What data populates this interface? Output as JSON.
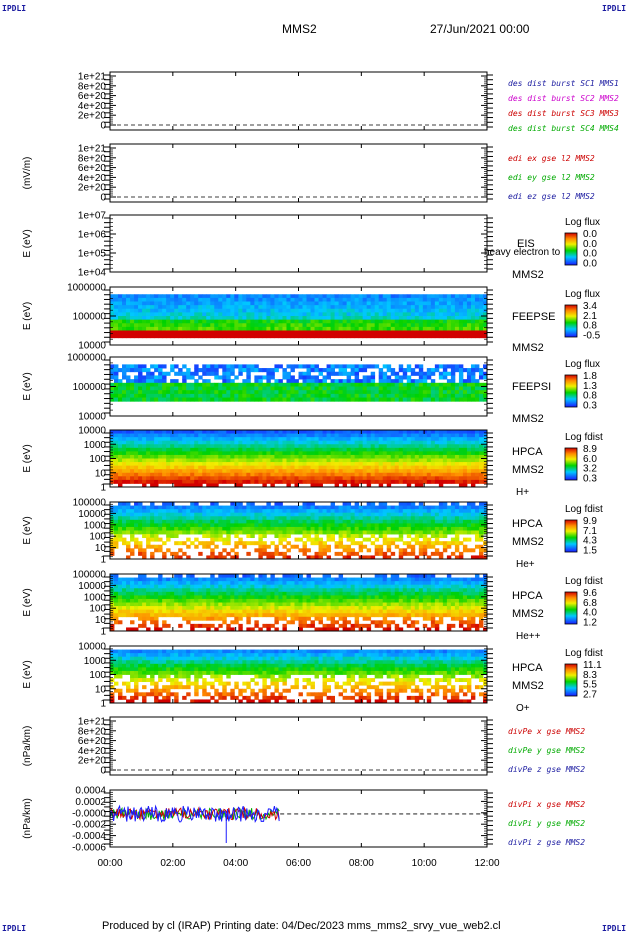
{
  "corner_label": "IPDLI",
  "header": {
    "title": "MMS2",
    "date": "27/Jun/2021 00:00"
  },
  "footer": {
    "text": "Produced by cl (IRAP)   Printing date: 04/Dec/2023   mms_mms2_srvy_vue_web2.cl"
  },
  "chart_data": {
    "type": "heatmap",
    "x_ticks": [
      "00:00",
      "02:00",
      "04:00",
      "06:00",
      "08:00",
      "10:00",
      "12:00"
    ],
    "x_range": [
      "00:00",
      "12:00"
    ],
    "panels": [
      {
        "id": "p1",
        "ylabel": "",
        "kind": "line",
        "y_ticks": [
          "1e+21",
          "8e+20",
          "6e+20",
          "4e+20",
          "2e+20",
          "0"
        ],
        "legend": [
          {
            "text": "des dist burst SC1 MMS1",
            "color": "#1a1aa0"
          },
          {
            "text": "des dist burst SC2 MMS2",
            "color": "#cc00cc"
          },
          {
            "text": "des dist burst SC3 MMS3",
            "color": "#cc0000"
          },
          {
            "text": "des dist burst SC4 MMS4",
            "color": "#00aa00"
          }
        ]
      },
      {
        "id": "p2",
        "ylabel": "(mV/m)",
        "kind": "line",
        "y_ticks": [
          "1e+21",
          "8e+20",
          "6e+20",
          "4e+20",
          "2e+20",
          "0"
        ],
        "legend": [
          {
            "text": "edi ex gse l2 MMS2",
            "color": "#cc0000"
          },
          {
            "text": "edi ey gse l2 MMS2",
            "color": "#00aa00"
          },
          {
            "text": "edi ez gse l2 MMS2",
            "color": "#1a1aa0"
          }
        ]
      },
      {
        "id": "p3",
        "ylabel": "E (eV)",
        "kind": "spectro",
        "y_ticks": [
          "1e+07",
          "1e+06",
          "1e+05",
          "1e+04"
        ],
        "instrument": "EIS",
        "sc": "MMS2",
        "species": "",
        "overlay": "heavy electron to",
        "cbar_title": "Log flux",
        "cbar_ticks": [
          "0.0",
          "0.0",
          "0.0",
          "0.0"
        ]
      },
      {
        "id": "p4",
        "ylabel": "E (eV)",
        "kind": "spectro",
        "y_ticks": [
          "1000000",
          "100000",
          "10000"
        ],
        "instrument": "FEEPSE",
        "sc": "MMS2",
        "species": "",
        "cbar_title": "Log flux",
        "cbar_ticks": [
          "3.4",
          "2.1",
          "0.8",
          "-0.5"
        ]
      },
      {
        "id": "p5",
        "ylabel": "E (eV)",
        "kind": "spectro",
        "y_ticks": [
          "1000000",
          "100000",
          "10000"
        ],
        "instrument": "FEEPSI",
        "sc": "MMS2",
        "species": "",
        "cbar_title": "Log flux",
        "cbar_ticks": [
          "1.8",
          "1.3",
          "0.8",
          "0.3"
        ]
      },
      {
        "id": "p6",
        "ylabel": "E (eV)",
        "kind": "spectro",
        "y_ticks": [
          "10000",
          "1000",
          "100",
          "10",
          "1"
        ],
        "instrument": "HPCA",
        "sc": "MMS2",
        "species": "H+",
        "cbar_title": "Log fdist",
        "cbar_ticks": [
          "8.9",
          "6.0",
          "3.2",
          "0.3"
        ]
      },
      {
        "id": "p7",
        "ylabel": "E (eV)",
        "kind": "spectro",
        "y_ticks": [
          "100000",
          "10000",
          "1000",
          "100",
          "10",
          "1"
        ],
        "instrument": "HPCA",
        "sc": "MMS2",
        "species": "He+",
        "cbar_title": "Log fdist",
        "cbar_ticks": [
          "9.9",
          "7.1",
          "4.3",
          "1.5"
        ]
      },
      {
        "id": "p8",
        "ylabel": "E (eV)",
        "kind": "spectro",
        "y_ticks": [
          "100000",
          "10000",
          "1000",
          "100",
          "10",
          "1"
        ],
        "instrument": "HPCA",
        "sc": "MMS2",
        "species": "He++",
        "cbar_title": "Log fdist",
        "cbar_ticks": [
          "9.6",
          "6.8",
          "4.0",
          "1.2"
        ]
      },
      {
        "id": "p9",
        "ylabel": "E (eV)",
        "kind": "spectro",
        "y_ticks": [
          "10000",
          "1000",
          "100",
          "10",
          "1"
        ],
        "instrument": "HPCA",
        "sc": "MMS2",
        "species": "O+",
        "cbar_title": "Log fdist",
        "cbar_ticks": [
          "11.1",
          "8.3",
          "5.5",
          "2.7"
        ]
      },
      {
        "id": "p10",
        "ylabel": "(nPa/km)",
        "kind": "line",
        "y_ticks": [
          "1e+21",
          "8e+20",
          "6e+20",
          "4e+20",
          "2e+20",
          "0"
        ],
        "legend": [
          {
            "text": "divPe x gse MMS2",
            "color": "#cc0000"
          },
          {
            "text": "divPe y gse MMS2",
            "color": "#00aa00"
          },
          {
            "text": "divPe z gse MMS2",
            "color": "#1a1aa0"
          }
        ]
      },
      {
        "id": "p11",
        "ylabel": "(nPa/km)",
        "kind": "line",
        "y_ticks": [
          "0.0004",
          "0.0002",
          "-0.0000",
          "-0.0002",
          "-0.0004",
          "-0.0006"
        ],
        "legend": [
          {
            "text": "divPi x gse MMS2",
            "color": "#cc0000"
          },
          {
            "text": "divPi y gse MMS2",
            "color": "#00aa00"
          },
          {
            "text": "divPi z gse MMS2",
            "color": "#1a1aa0"
          }
        ],
        "data_end": "05:25"
      }
    ]
  }
}
